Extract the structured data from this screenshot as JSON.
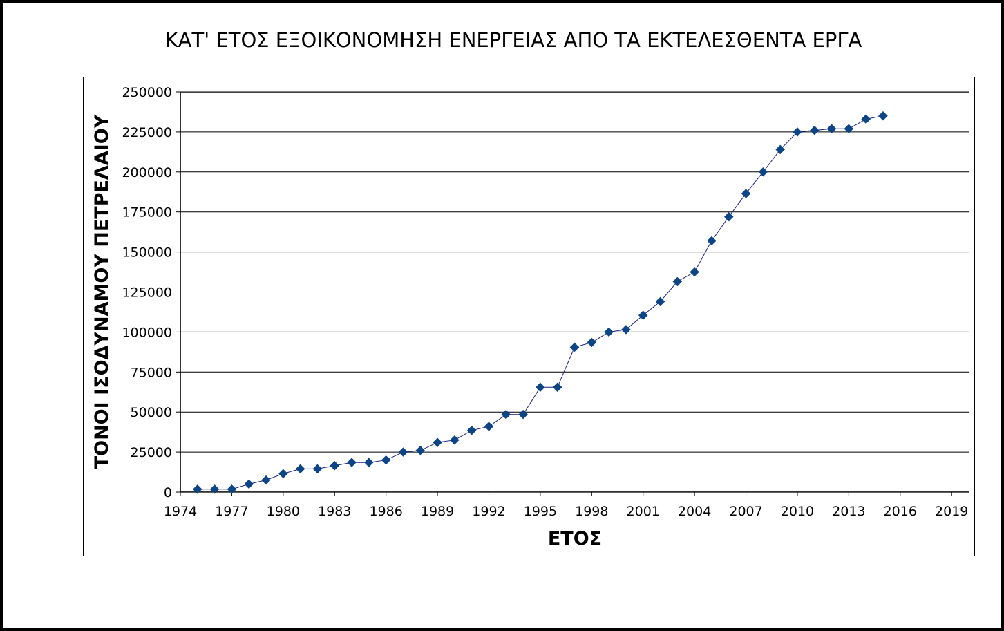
{
  "chart_data": {
    "type": "line",
    "title": "ΚΑΤ' ΕΤΟΣ ΕΞΟΙΚΟΝΟΜΗΣΗ ΕΝΕΡΓΕΙΑΣ ΑΠΟ ΤΑ ΕΚΤΕΛΕΣΘΕΝΤΑ ΕΡΓΑ",
    "xlabel": "ΕΤΟΣ",
    "ylabel": "ΤΟΝΟΙ ΙΣΟΔΥΝΑΜΟΥ ΠΕΤΡΕΛΑΙΟΥ",
    "xlim": [
      1974,
      2020
    ],
    "ylim": [
      0,
      250000
    ],
    "x_ticks": [
      1974,
      1977,
      1980,
      1983,
      1986,
      1989,
      1992,
      1995,
      1998,
      2001,
      2004,
      2007,
      2010,
      2013,
      2016,
      2019
    ],
    "y_ticks": [
      0,
      25000,
      50000,
      75000,
      100000,
      125000,
      150000,
      175000,
      200000,
      225000,
      250000
    ],
    "grid": "horizontal",
    "legend": "none",
    "marker": "diamond",
    "series_color": "#0b4586",
    "line_color": "#1a237e",
    "series": [
      {
        "x": [
          1975,
          1976,
          1977,
          1978,
          1979,
          1980,
          1981,
          1982,
          1983,
          1984,
          1985,
          1986,
          1987,
          1988,
          1989,
          1990,
          1991,
          1992,
          1993,
          1994,
          1995,
          1996,
          1997,
          1998,
          1999,
          2000,
          2001,
          2002,
          2003,
          2004,
          2005,
          2006,
          2007,
          2008,
          2009,
          2010,
          2011,
          2012,
          2013,
          2014,
          2015
        ],
        "y": [
          1800,
          1800,
          1800,
          5000,
          7500,
          11500,
          14500,
          14500,
          16500,
          18500,
          18500,
          20000,
          25000,
          26000,
          31000,
          32500,
          38500,
          41000,
          48500,
          48500,
          65500,
          65500,
          90500,
          93500,
          100000,
          101500,
          110500,
          119000,
          131500,
          137500,
          157000,
          172000,
          186500,
          200000,
          214000,
          225000,
          226000,
          227000,
          227000,
          233000,
          235000
        ]
      }
    ]
  }
}
